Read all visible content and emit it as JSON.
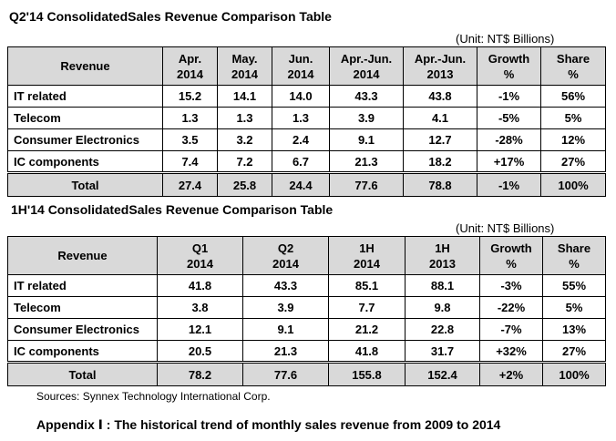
{
  "q2": {
    "title": "Q2'14 ConsolidatedSales  Revenue  Comparison  Table",
    "unit": "(Unit:  NT$ Billions)",
    "headers": [
      {
        "l1": "Revenue",
        "l2": ""
      },
      {
        "l1": "Apr.",
        "l2": "2014"
      },
      {
        "l1": "May.",
        "l2": "2014"
      },
      {
        "l1": "Jun.",
        "l2": "2014"
      },
      {
        "l1": "Apr.-Jun.",
        "l2": "2014"
      },
      {
        "l1": "Apr.-Jun.",
        "l2": "2013"
      },
      {
        "l1": "Growth",
        "l2": "%"
      },
      {
        "l1": "Share",
        "l2": "%"
      }
    ],
    "rows": [
      [
        "IT related",
        "15.2",
        "14.1",
        "14.0",
        "43.3",
        "43.8",
        "-1%",
        "56%"
      ],
      [
        "Telecom",
        "1.3",
        "1.3",
        "1.3",
        "3.9",
        "4.1",
        "-5%",
        "5%"
      ],
      [
        "Consumer Electronics",
        "3.5",
        "3.2",
        "2.4",
        "9.1",
        "12.7",
        "-28%",
        "12%"
      ],
      [
        "IC components",
        "7.4",
        "7.2",
        "6.7",
        "21.3",
        "18.2",
        "+17%",
        "27%"
      ]
    ],
    "total": [
      "Total",
      "27.4",
      "25.8",
      "24.4",
      "77.6",
      "78.8",
      "-1%",
      "100%"
    ]
  },
  "h1": {
    "title": "1H'14 ConsolidatedSales  Revenue  Comparison  Table",
    "unit": "(Unit:  NT$ Billions)",
    "headers": [
      {
        "l1": "Revenue",
        "l2": ""
      },
      {
        "l1": "Q1",
        "l2": "2014"
      },
      {
        "l1": "Q2",
        "l2": "2014"
      },
      {
        "l1": "1H",
        "l2": "2014"
      },
      {
        "l1": "1H",
        "l2": "2013"
      },
      {
        "l1": "Growth",
        "l2": "%"
      },
      {
        "l1": "Share",
        "l2": "%"
      }
    ],
    "rows": [
      [
        "IT related",
        "41.8",
        "43.3",
        "85.1",
        "88.1",
        "-3%",
        "55%"
      ],
      [
        "Telecom",
        "3.8",
        "3.9",
        "7.7",
        "9.8",
        "-22%",
        "5%"
      ],
      [
        "Consumer Electronics",
        "12.1",
        "9.1",
        "21.2",
        "22.8",
        "-7%",
        "13%"
      ],
      [
        "IC components",
        "20.5",
        "21.3",
        "41.8",
        "31.7",
        "+32%",
        "27%"
      ]
    ],
    "total": [
      "Total",
      "78.2",
      "77.6",
      "155.8",
      "152.4",
      "+2%",
      "100%"
    ]
  },
  "source": "Sources: Synnex Technology International Corp.",
  "appendix": "Appendix Ⅰ : The historical  trend  of  monthly  sales  revenue  from  2009  to  2014"
}
